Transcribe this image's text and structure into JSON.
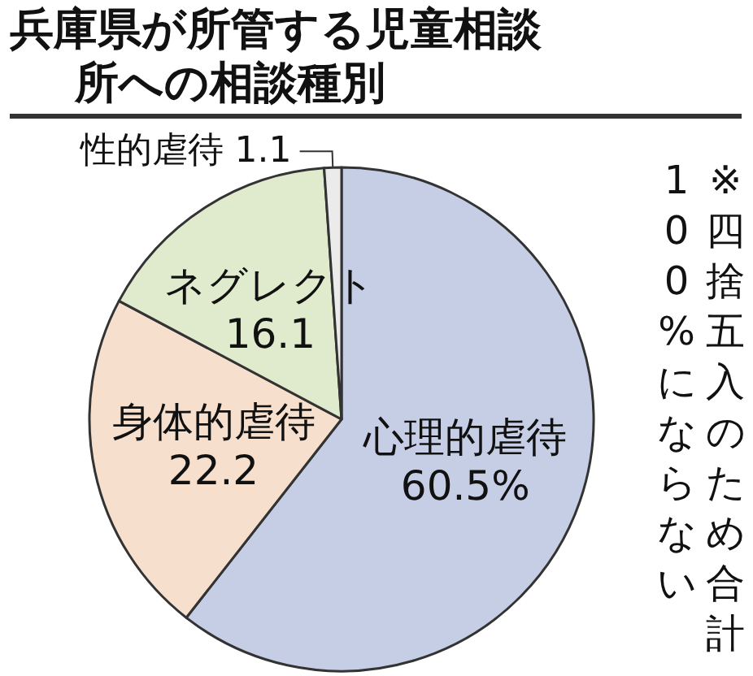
{
  "chart_data": {
    "type": "pie",
    "title": "兵庫県が所管する児童相談所への相談種別",
    "categories": [
      "心理的虐待",
      "身体的虐待",
      "ネグレクト",
      "性的虐待"
    ],
    "values": [
      60.5,
      22.2,
      16.1,
      1.1
    ],
    "value_labels": [
      "60.5%",
      "22.2",
      "16.1",
      "1.1"
    ],
    "colors": [
      "#c6cee6",
      "#f6dfcc",
      "#e0ebcd",
      "#ebebeb"
    ],
    "annotations": [
      "※四捨五入のため合計",
      "100%にならない"
    ],
    "legend": false
  }
}
